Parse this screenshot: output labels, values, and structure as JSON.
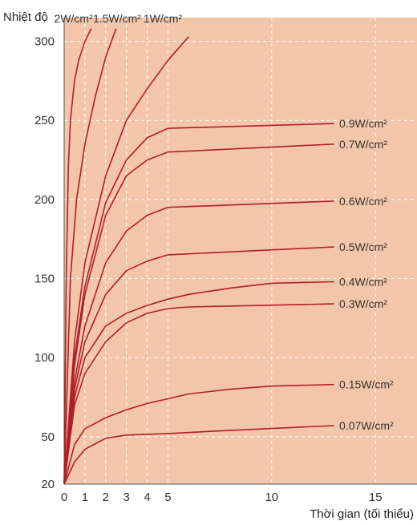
{
  "chart_data": {
    "type": "line",
    "title": "",
    "xlabel": "Thời gian (tối thiểu)",
    "ylabel": "Nhiệt độ",
    "xlim": [
      0,
      17
    ],
    "ylim": [
      20,
      315
    ],
    "x_ticks": [
      0,
      1,
      2,
      3,
      4,
      5,
      10,
      15
    ],
    "y_ticks": [
      20,
      50,
      100,
      150,
      200,
      250,
      300
    ],
    "grid": true,
    "legend": "inline labels at line ends",
    "colors": {
      "plot_background": "#f3c6aa",
      "line": "#b01e28",
      "grid": "#ffffff"
    },
    "series": [
      {
        "name": "2W/cm²",
        "x": [
          0,
          0.1,
          0.2,
          0.3,
          0.5,
          0.7,
          1.0,
          1.3
        ],
        "y": [
          20,
          150,
          220,
          250,
          275,
          288,
          300,
          308
        ]
      },
      {
        "name": "1.5W/cm²",
        "x": [
          0,
          0.3,
          0.6,
          1.0,
          1.5,
          2.0,
          2.5
        ],
        "y": [
          20,
          150,
          200,
          235,
          265,
          290,
          308
        ]
      },
      {
        "name": "1W/cm²",
        "x": [
          0,
          0.5,
          1,
          2,
          3,
          4,
          5,
          6
        ],
        "y": [
          20,
          110,
          160,
          215,
          250,
          270,
          288,
          303
        ]
      },
      {
        "name": "0.9W/cm²",
        "x": [
          0,
          0.5,
          1,
          2,
          3,
          4,
          5,
          13
        ],
        "y": [
          20,
          100,
          145,
          198,
          225,
          239,
          245,
          248
        ]
      },
      {
        "name": "0.7W/cm²",
        "x": [
          0,
          0.5,
          1,
          2,
          3,
          4,
          5,
          13
        ],
        "y": [
          20,
          95,
          140,
          190,
          215,
          225,
          230,
          235
        ]
      },
      {
        "name": "0.6W/cm²",
        "x": [
          0,
          0.5,
          1,
          2,
          3,
          4,
          5,
          13
        ],
        "y": [
          20,
          85,
          120,
          160,
          180,
          190,
          195,
          199
        ]
      },
      {
        "name": "0.5W/cm²",
        "x": [
          0,
          0.5,
          1,
          2,
          3,
          4,
          5,
          13
        ],
        "y": [
          20,
          80,
          110,
          140,
          155,
          161,
          165,
          170
        ]
      },
      {
        "name": "0.4W/cm²",
        "x": [
          0,
          0.5,
          1,
          2,
          3,
          4,
          5,
          6,
          8,
          10,
          13
        ],
        "y": [
          20,
          75,
          100,
          120,
          128,
          133,
          137,
          140,
          144,
          147,
          148
        ]
      },
      {
        "name": "0.3W/cm²",
        "x": [
          0,
          0.5,
          1,
          2,
          3,
          4,
          5,
          6,
          13
        ],
        "y": [
          20,
          70,
          90,
          110,
          122,
          128,
          131,
          132,
          134
        ]
      },
      {
        "name": "0.15W/cm²",
        "x": [
          0,
          0.5,
          1,
          2,
          3,
          4,
          5,
          6,
          8,
          10,
          13
        ],
        "y": [
          20,
          45,
          55,
          62,
          67,
          71,
          74,
          77,
          80,
          82,
          83
        ]
      },
      {
        "name": "0.07W/cm²",
        "x": [
          0,
          0.5,
          1,
          2,
          3,
          5,
          8,
          13
        ],
        "y": [
          20,
          34,
          42,
          49,
          51,
          52,
          54,
          57
        ]
      }
    ]
  }
}
